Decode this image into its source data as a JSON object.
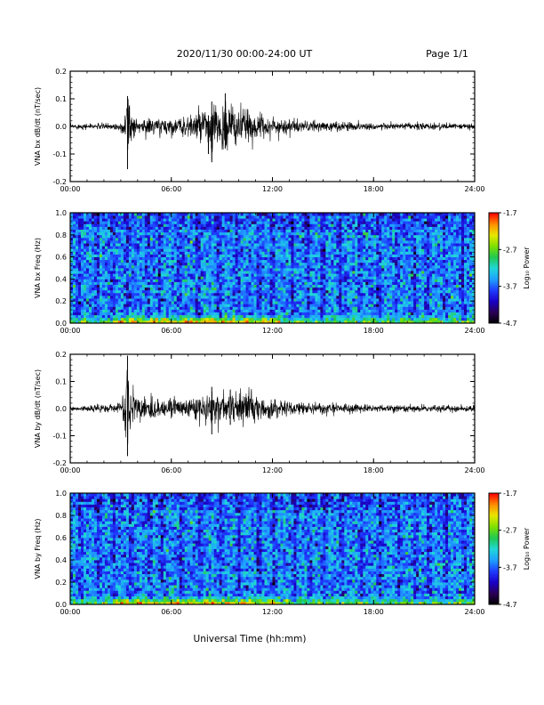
{
  "header": {
    "date_range": "2020/11/30  00:00-24:00 UT",
    "page": "Page 1/1"
  },
  "colors": {
    "colormap": [
      "#000000",
      "#2a0055",
      "#1a00c8",
      "#1f3cff",
      "#1fa0ff",
      "#20d8d8",
      "#20c850",
      "#7fe000",
      "#e8e800",
      "#ff8c00",
      "#ff0000"
    ]
  },
  "chart_data": [
    {
      "type": "line",
      "ylabel": "VNA bx dB/dt (nT/sec)",
      "xlim": [
        0,
        24
      ],
      "ylim": [
        -0.2,
        0.2
      ],
      "x_ticks": [
        "00:00",
        "06:00",
        "12:00",
        "18:00",
        "24:00"
      ],
      "y_ticks": [
        "-0.2",
        "-0.1",
        "0.0",
        "0.1",
        "0.2"
      ],
      "y_tick_values": [
        -0.2,
        -0.1,
        0.0,
        0.1,
        0.2
      ],
      "baseline_amplitude": 0.008,
      "envelope": [
        {
          "t": 0.0,
          "amp": 0.008
        },
        {
          "t": 3.0,
          "amp": 0.012
        },
        {
          "t": 3.4,
          "amp": 0.11
        },
        {
          "t": 3.8,
          "amp": 0.03
        },
        {
          "t": 6.5,
          "amp": 0.025
        },
        {
          "t": 7.5,
          "amp": 0.05
        },
        {
          "t": 8.5,
          "amp": 0.06
        },
        {
          "t": 9.3,
          "amp": 0.09
        },
        {
          "t": 10.5,
          "amp": 0.05
        },
        {
          "t": 12.0,
          "amp": 0.03
        },
        {
          "t": 14.0,
          "amp": 0.018
        },
        {
          "t": 18.0,
          "amp": 0.012
        },
        {
          "t": 24.0,
          "amp": 0.01
        }
      ],
      "peaks": [
        {
          "t": 3.4,
          "max": 0.11,
          "min": -0.155
        },
        {
          "t": 8.4,
          "max": 0.09,
          "min": -0.13
        },
        {
          "t": 8.2,
          "max": 0.04,
          "min": -0.1
        },
        {
          "t": 9.2,
          "max": 0.12,
          "min": -0.08
        }
      ]
    },
    {
      "type": "heatmap",
      "ylabel": "VNA bx Freq (Hz)",
      "xlim": [
        0,
        24
      ],
      "ylim": [
        0,
        1.0
      ],
      "x_ticks": [
        "00:00",
        "06:00",
        "12:00",
        "18:00",
        "24:00"
      ],
      "y_ticks": [
        "0.0",
        "0.2",
        "0.4",
        "0.6",
        "0.8",
        "1.0"
      ],
      "y_tick_values": [
        0,
        0.2,
        0.4,
        0.6,
        0.8,
        1.0
      ],
      "colorbar": {
        "label": "Log₁₀ Power",
        "range": [
          -4.7,
          -1.7
        ],
        "ticks": [
          "-1.7",
          "-2.7",
          "-3.7",
          "-4.7"
        ],
        "tick_values": [
          -1.7,
          -2.7,
          -3.7,
          -4.7
        ]
      },
      "dark_bands_hours": [
        0.5,
        1.6,
        2.5,
        3.4,
        4.6,
        5.3,
        6.5,
        7.6,
        8.8,
        9.9,
        11.2,
        12.0,
        13.2,
        14.1,
        15.0,
        16.0,
        17.2,
        18.3,
        19.4,
        20.4,
        21.2,
        22.2,
        23.3
      ],
      "low_freq_enhancement": [
        {
          "t_start": 2.5,
          "t_end": 12.5,
          "level": -2.4
        }
      ]
    },
    {
      "type": "line",
      "ylabel": "VNA by dB/dt (nT/sec)",
      "xlim": [
        0,
        24
      ],
      "ylim": [
        -0.2,
        0.2
      ],
      "x_ticks": [
        "00:00",
        "06:00",
        "12:00",
        "18:00",
        "24:00"
      ],
      "y_ticks": [
        "-0.2",
        "-0.1",
        "0.0",
        "0.1",
        "0.2"
      ],
      "y_tick_values": [
        -0.2,
        -0.1,
        0.0,
        0.1,
        0.2
      ],
      "baseline_amplitude": 0.008,
      "envelope": [
        {
          "t": 0.0,
          "amp": 0.008
        },
        {
          "t": 3.0,
          "amp": 0.015
        },
        {
          "t": 3.4,
          "amp": 0.15
        },
        {
          "t": 3.9,
          "amp": 0.04
        },
        {
          "t": 6.5,
          "amp": 0.03
        },
        {
          "t": 8.5,
          "amp": 0.06
        },
        {
          "t": 9.5,
          "amp": 0.06
        },
        {
          "t": 11.0,
          "amp": 0.05
        },
        {
          "t": 12.0,
          "amp": 0.035
        },
        {
          "t": 14.0,
          "amp": 0.02
        },
        {
          "t": 18.0,
          "amp": 0.012
        },
        {
          "t": 24.0,
          "amp": 0.01
        }
      ],
      "peaks": [
        {
          "t": 3.4,
          "max": 0.195,
          "min": -0.175
        },
        {
          "t": 8.4,
          "max": 0.08,
          "min": -0.095
        },
        {
          "t": 9.5,
          "max": 0.07,
          "min": -0.06
        }
      ]
    },
    {
      "type": "heatmap",
      "ylabel": "VNA by Freq (Hz)",
      "xlim": [
        0,
        24
      ],
      "ylim": [
        0,
        1.0
      ],
      "x_ticks": [
        "00:00",
        "06:00",
        "12:00",
        "18:00",
        "24:00"
      ],
      "y_ticks": [
        "0.0",
        "0.2",
        "0.4",
        "0.6",
        "0.8",
        "1.0"
      ],
      "y_tick_values": [
        0,
        0.2,
        0.4,
        0.6,
        0.8,
        1.0
      ],
      "colorbar": {
        "label": "Log₁₀ Power",
        "range": [
          -4.7,
          -1.7
        ],
        "ticks": [
          "-1.7",
          "-2.7",
          "-3.7",
          "-4.7"
        ],
        "tick_values": [
          -1.7,
          -2.7,
          -3.7,
          -4.7
        ]
      },
      "dark_bands_hours": [
        0.6,
        1.7,
        2.6,
        3.6,
        4.7,
        5.4,
        6.6,
        7.7,
        8.9,
        10.0,
        11.2,
        12.1,
        13.3,
        14.2,
        15.1,
        16.1,
        17.3,
        18.4,
        19.5,
        20.5,
        21.3,
        22.3,
        23.4
      ],
      "low_freq_enhancement": [
        {
          "t_start": 2.5,
          "t_end": 12.5,
          "level": -2.2
        }
      ]
    }
  ],
  "x_axis_title": "Universal Time (hh:mm)"
}
